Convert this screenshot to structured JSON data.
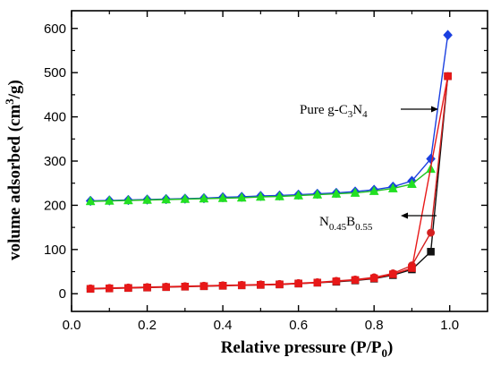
{
  "chart_data": {
    "type": "line",
    "title": "",
    "xlabel": {
      "main": "Relative pressure (P/P",
      "sub": "0",
      "close": ")"
    },
    "ylabel": {
      "main": "volume adsorbed (cm",
      "sup": "3",
      "close": "/g)"
    },
    "xlim": [
      0.0,
      1.1
    ],
    "ylim": [
      -40,
      640
    ],
    "xticks": [
      0.0,
      0.2,
      0.4,
      0.6,
      0.8,
      1.0
    ],
    "xtick_labels": [
      "0.0",
      "0.2",
      "0.4",
      "0.6",
      "0.8",
      "1.0"
    ],
    "yticks": [
      0,
      100,
      200,
      300,
      400,
      500,
      600
    ],
    "ytick_labels": [
      "0",
      "100",
      "200",
      "300",
      "400",
      "500",
      "600"
    ],
    "grid": false,
    "annotations": [
      {
        "id": "pure",
        "parts": [
          "Pure g-C",
          "3",
          "N",
          "4"
        ],
        "points_to": "top curves"
      },
      {
        "id": "nb",
        "parts": [
          "N",
          "0.45",
          "B",
          "0.55"
        ],
        "points_to": "bottom curves"
      }
    ],
    "series": [
      {
        "marker": "diamond",
        "color": "#1a3fe0",
        "line_color": "#1a3fe0",
        "x": [
          0.05,
          0.1,
          0.15,
          0.2,
          0.25,
          0.3,
          0.35,
          0.4,
          0.45,
          0.5,
          0.55,
          0.6,
          0.65,
          0.7,
          0.75,
          0.8,
          0.85,
          0.9,
          0.95,
          0.995
        ],
        "y": [
          210,
          211,
          212,
          213,
          214,
          215,
          216,
          218,
          219,
          221,
          222,
          224,
          226,
          228,
          231,
          235,
          242,
          255,
          305,
          585
        ]
      },
      {
        "marker": "triangle",
        "color": "#22e022",
        "line_color": "#22c022",
        "x": [
          0.05,
          0.1,
          0.15,
          0.2,
          0.25,
          0.3,
          0.35,
          0.4,
          0.45,
          0.5,
          0.55,
          0.6,
          0.65,
          0.7,
          0.75,
          0.8,
          0.85,
          0.9,
          0.95
        ],
        "y": [
          209,
          210,
          211,
          212,
          213,
          214,
          215,
          216,
          217,
          219,
          220,
          222,
          224,
          226,
          228,
          232,
          238,
          248,
          282
        ]
      },
      {
        "marker": "square",
        "color": "#111111",
        "line_color": "#111111",
        "x": [
          0.05,
          0.1,
          0.15,
          0.2,
          0.25,
          0.3,
          0.35,
          0.4,
          0.45,
          0.5,
          0.55,
          0.6,
          0.65,
          0.7,
          0.75,
          0.8,
          0.85,
          0.9,
          0.95,
          0.995
        ],
        "y": [
          11,
          12,
          13,
          14,
          15,
          16,
          17,
          18,
          19,
          20,
          21,
          23,
          25,
          27,
          30,
          34,
          42,
          55,
          95,
          492
        ]
      },
      {
        "marker": "circle",
        "color": "#d42020",
        "line_color": "#d42020",
        "x": [
          0.05,
          0.1,
          0.15,
          0.2,
          0.25,
          0.3,
          0.35,
          0.4,
          0.45,
          0.5,
          0.55,
          0.6,
          0.65,
          0.7,
          0.75,
          0.8,
          0.85,
          0.9,
          0.95,
          0.995
        ],
        "y": [
          12,
          13,
          14,
          15,
          16,
          17,
          18,
          19,
          20,
          21,
          22,
          24,
          26,
          29,
          32,
          37,
          46,
          64,
          138,
          492
        ]
      },
      {
        "marker": "square",
        "color": "#e81818",
        "line_color": "#e81818",
        "x": [
          0.05,
          0.1,
          0.15,
          0.2,
          0.25,
          0.3,
          0.35,
          0.4,
          0.45,
          0.5,
          0.55,
          0.6,
          0.65,
          0.7,
          0.75,
          0.8,
          0.85,
          0.9,
          0.995
        ],
        "y": [
          11,
          12,
          13,
          14,
          15,
          16,
          17,
          18,
          19,
          20,
          21,
          23,
          25,
          28,
          31,
          35,
          44,
          58,
          492
        ]
      }
    ]
  }
}
